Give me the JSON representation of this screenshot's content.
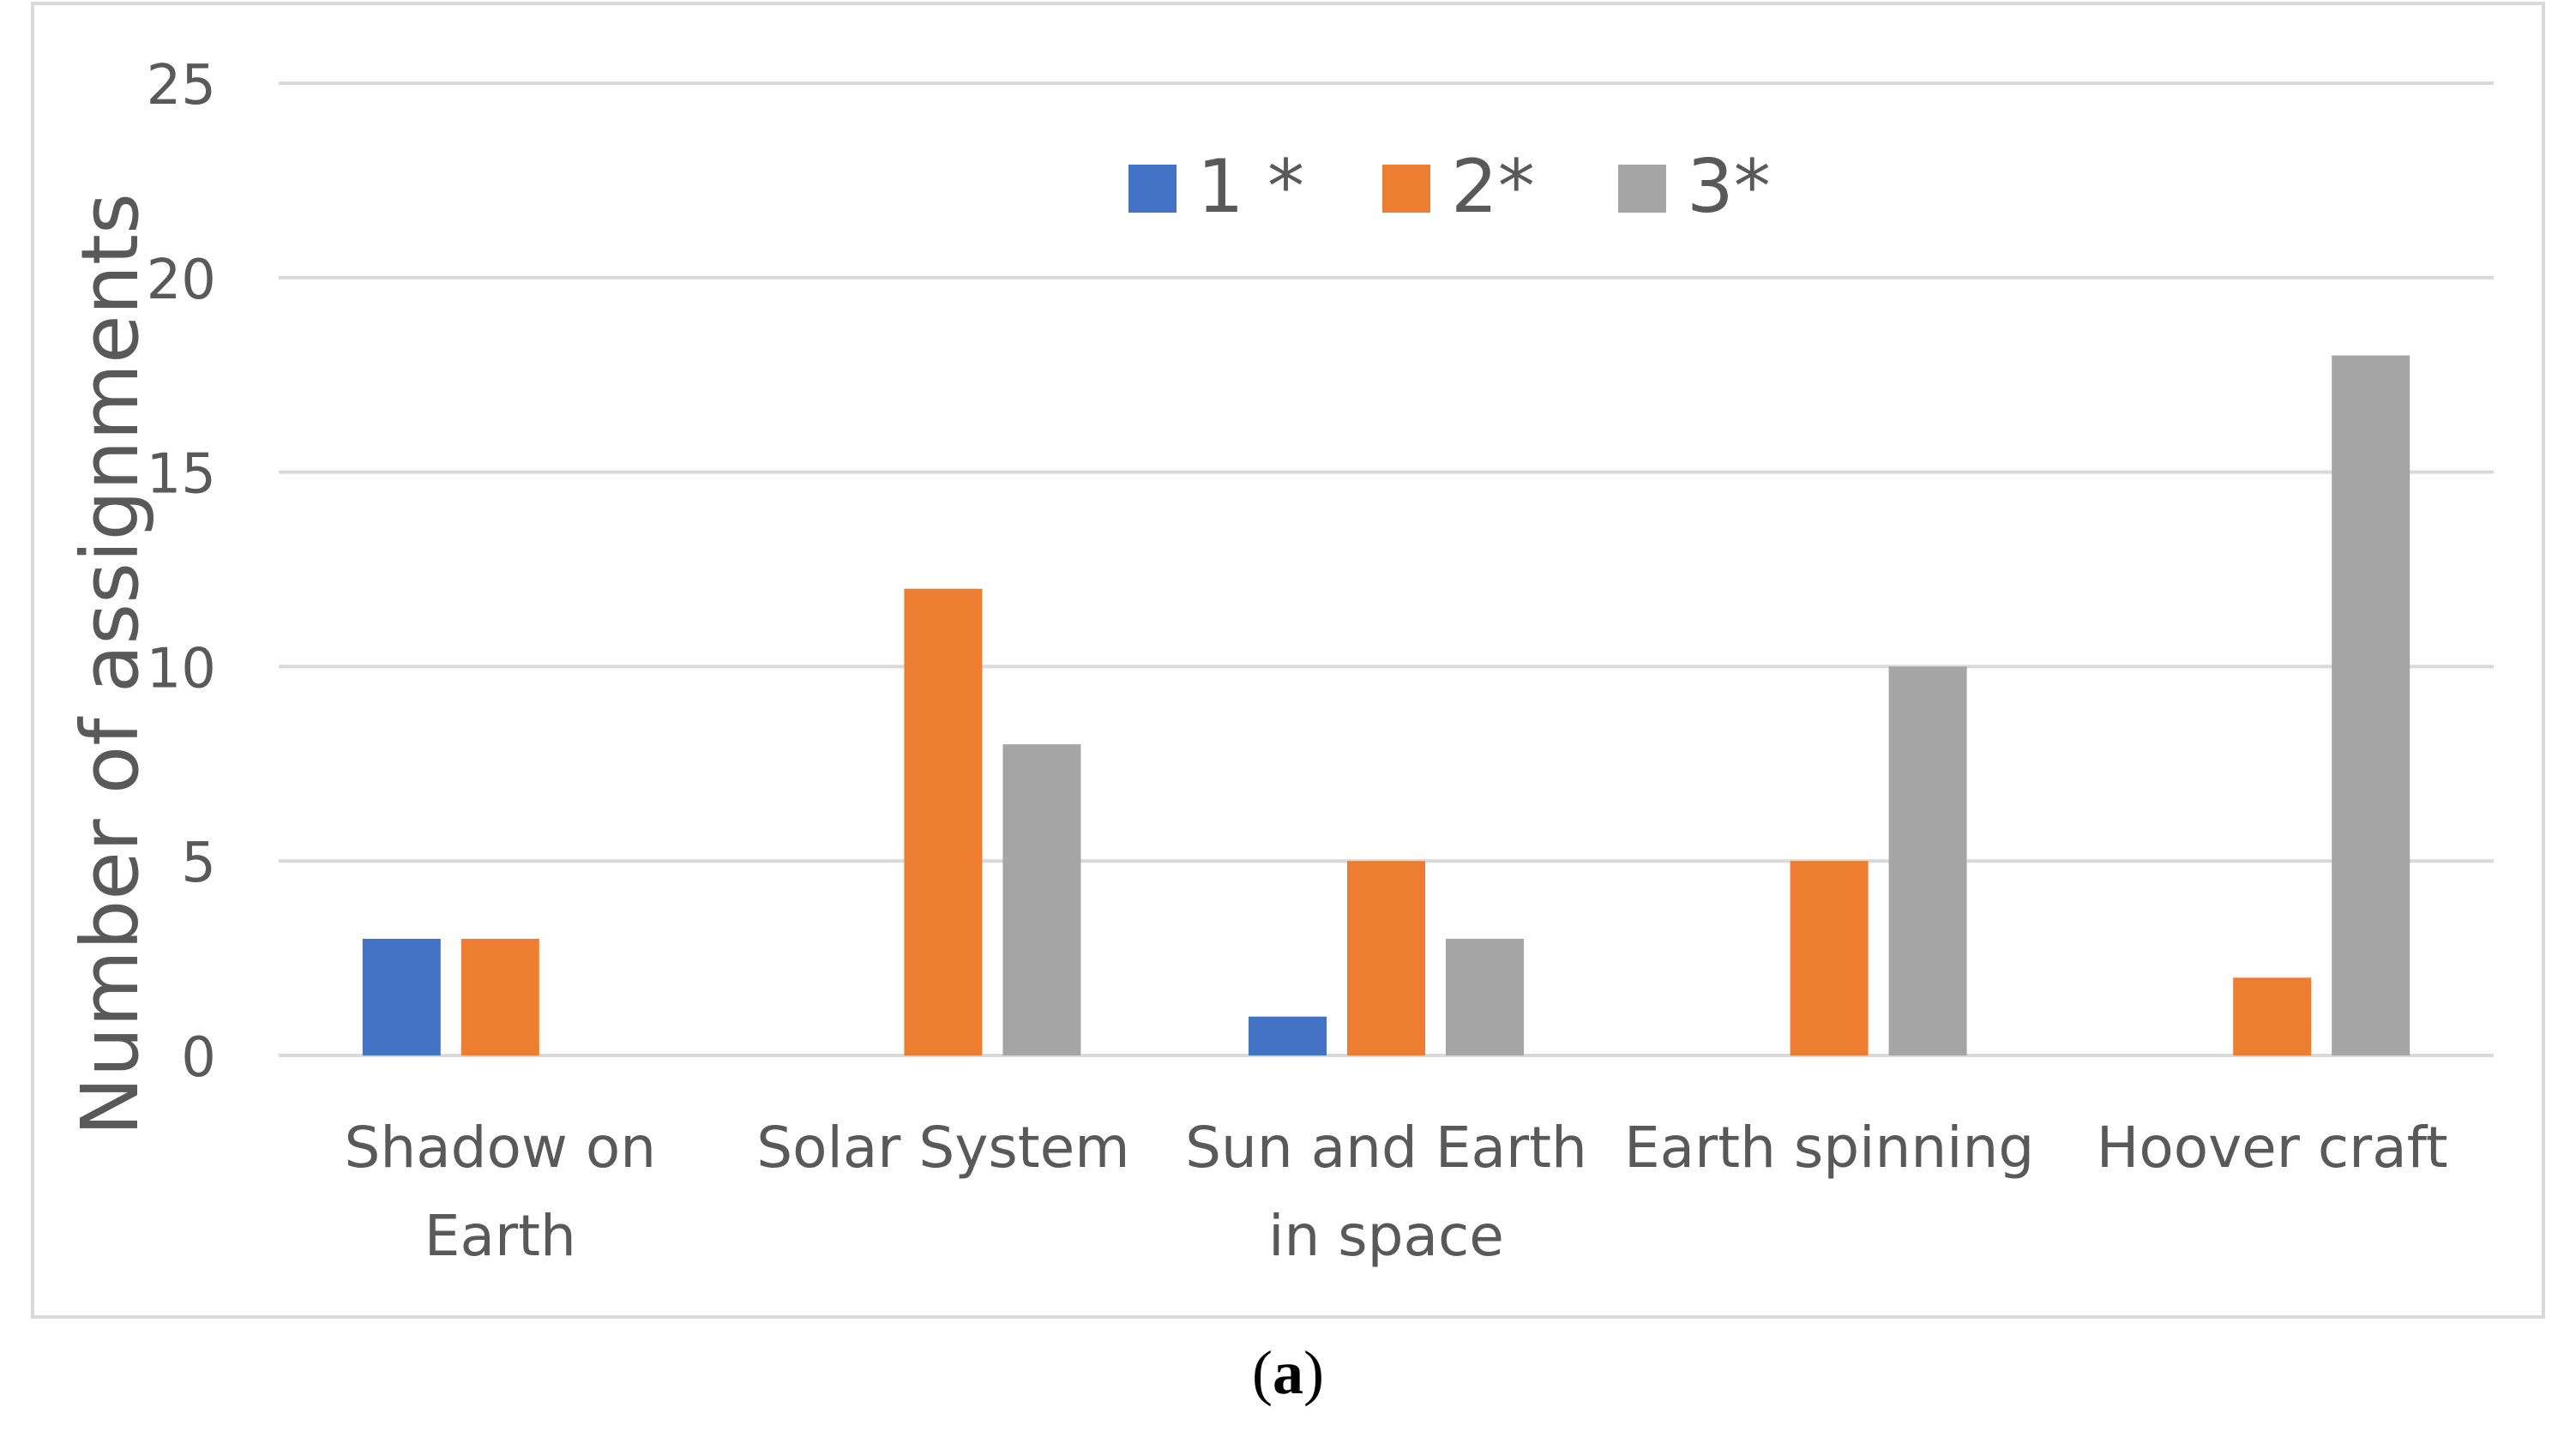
{
  "chart_data": {
    "type": "bar",
    "title": "",
    "xlabel": "",
    "ylabel": "Number of assignments",
    "ylim": [
      0,
      25
    ],
    "yticks": [
      "0",
      "5",
      "10",
      "15",
      "20",
      "25"
    ],
    "grid": true,
    "legend_position": "top-center",
    "categories": [
      [
        "Shadow on",
        "Earth"
      ],
      [
        "Solar System"
      ],
      [
        "Sun and Earth",
        "in space"
      ],
      [
        "Earth spinning"
      ],
      [
        "Hoover craft"
      ]
    ],
    "series": [
      {
        "name": "1 *",
        "color": "#4472C4",
        "values": [
          3,
          0,
          1,
          0,
          0
        ]
      },
      {
        "name": "2*",
        "color": "#ED7D31",
        "values": [
          3,
          12,
          5,
          5,
          2
        ]
      },
      {
        "name": "3*",
        "color": "#A5A5A5",
        "values": [
          0,
          8,
          3,
          10,
          18
        ]
      }
    ]
  },
  "caption": {
    "open": "(",
    "letter": "a",
    "close": ")"
  },
  "colors": {
    "grid": "#D9D9D9",
    "frame": "#D9D9D9",
    "text": "#595959"
  }
}
